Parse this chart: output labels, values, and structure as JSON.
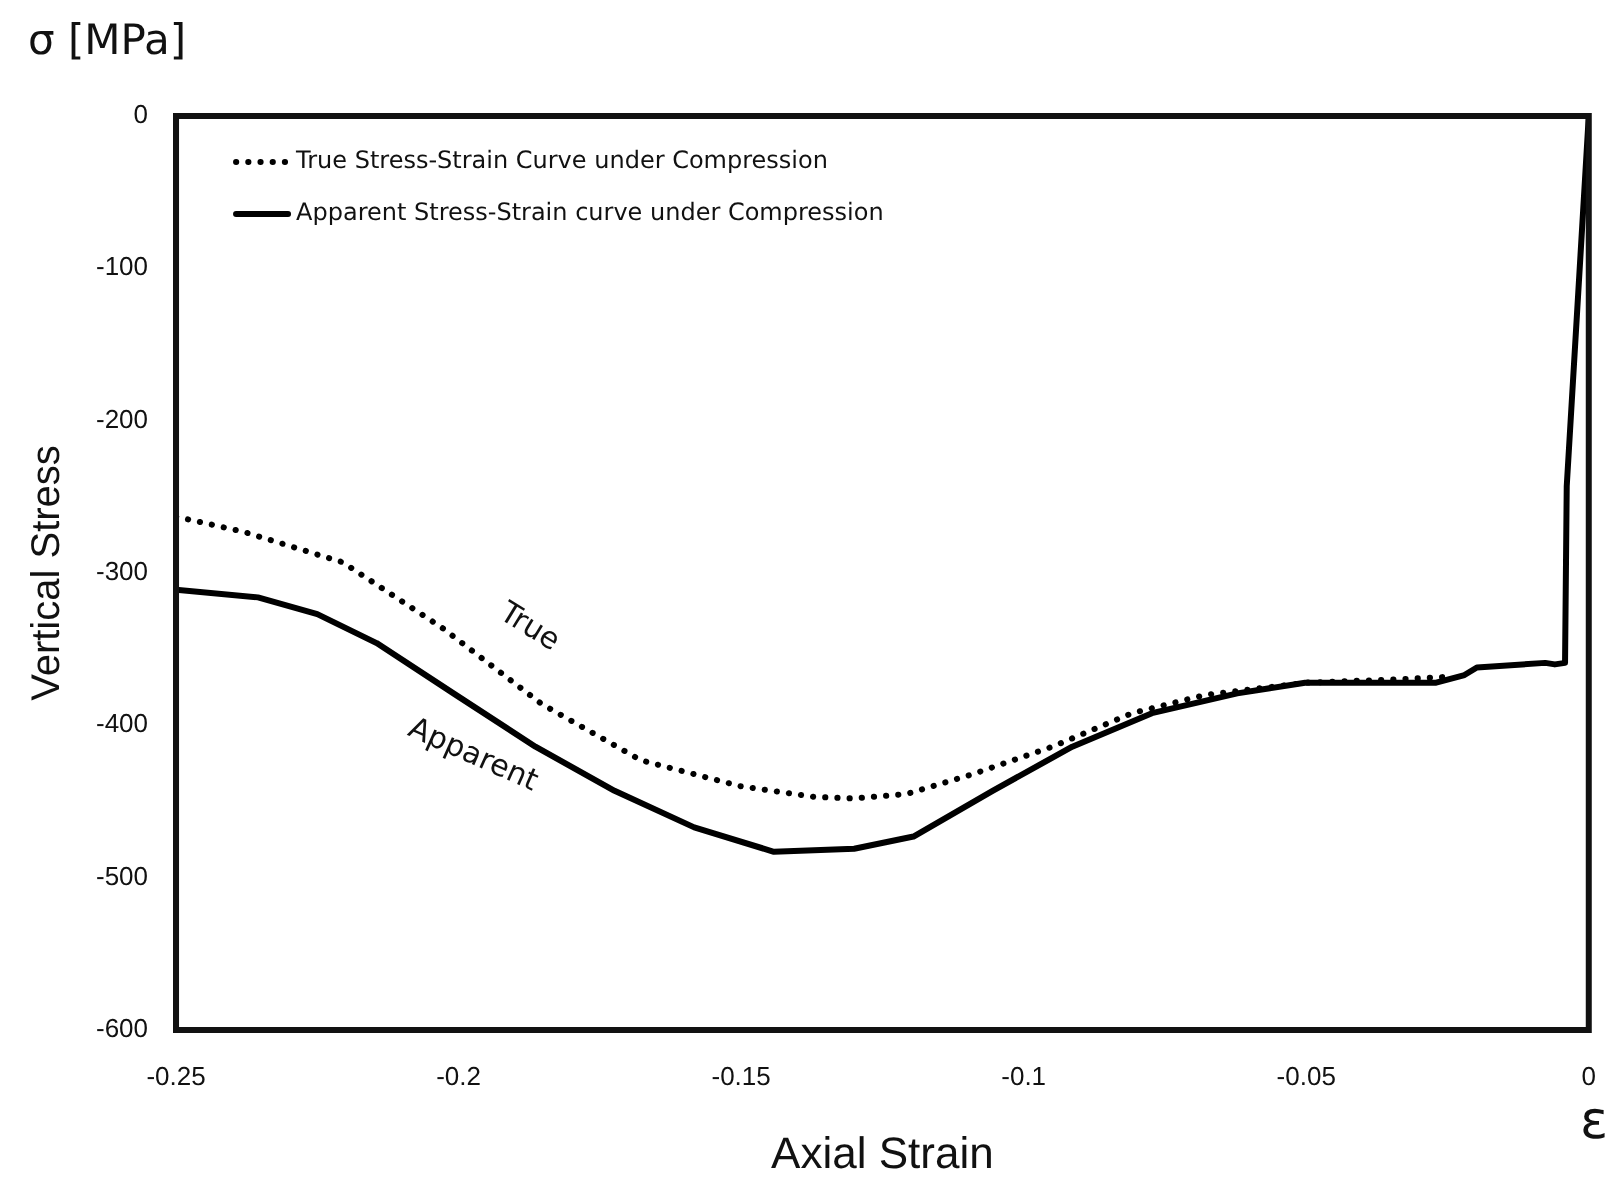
{
  "chart_data": {
    "type": "line",
    "xlabel": "Axial Strain",
    "ylabel": "Vertical Stress",
    "xlim": [
      -0.25,
      0
    ],
    "xticks": [
      -0.25,
      -0.2,
      -0.15,
      -0.1,
      -0.05,
      0
    ],
    "ylim": [
      -600,
      0
    ],
    "yticks": [
      -600,
      -500,
      -400,
      -300,
      -200,
      -100,
      0
    ],
    "grid": false,
    "legend": "top left",
    "marker": "none",
    "series": [
      {
        "name": "True Stress-Strain Curve under Compression",
        "color": "#000000",
        "line_style": "dotted",
        "x": [
          -0.25,
          -0.238,
          -0.2205,
          -0.2029,
          -0.1853,
          -0.1677,
          -0.1501,
          -0.137,
          -0.13,
          -0.1206,
          -0.109,
          -0.0949,
          -0.0808,
          -0.0678,
          -0.05,
          -0.035,
          -0.024
        ],
        "values": [
          -263,
          -273,
          -293,
          -336,
          -386,
          -423,
          -440,
          -447,
          -448,
          -445,
          -432,
          -414,
          -392,
          -380,
          -372,
          -370,
          -368
        ]
      },
      {
        "name": "Apparent Stress-Strain curve under Compression",
        "color": "#000000",
        "line_style": "solid",
        "x": [
          -0.25,
          -0.2355,
          -0.225,
          -0.2145,
          -0.2005,
          -0.1864,
          -0.1724,
          -0.1583,
          -0.1442,
          -0.13,
          -0.1195,
          -0.1055,
          -0.0914,
          -0.0773,
          -0.0622,
          -0.0502,
          -0.027,
          -0.022,
          -0.0198,
          -0.0077,
          -0.006,
          -0.0042,
          -0.0039,
          0
        ],
        "values": [
          -311,
          -316,
          -327,
          -346,
          -380,
          -414,
          -443,
          -467,
          -483,
          -481,
          -473,
          -443,
          -414,
          -392,
          -379,
          -372,
          -372,
          -367,
          -362,
          -359,
          -360,
          -359,
          -243,
          0
        ]
      }
    ],
    "annotations": [
      "True",
      "Apparent",
      "σ [MPa]",
      "ε"
    ]
  }
}
